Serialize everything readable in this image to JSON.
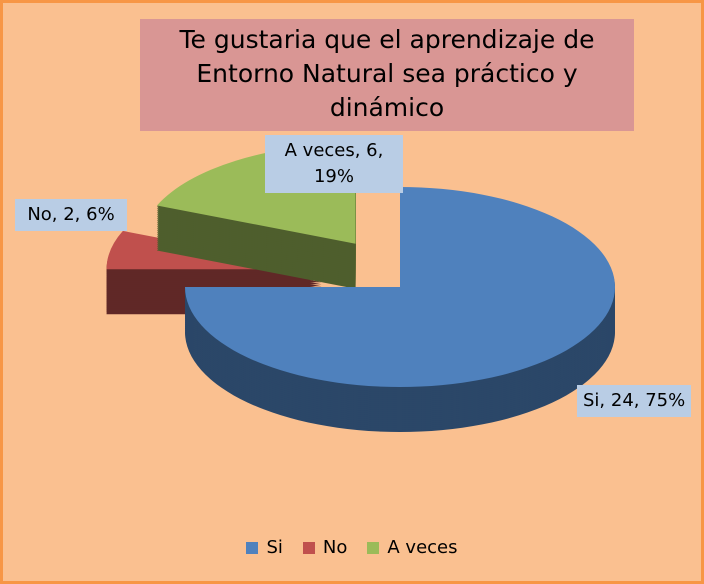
{
  "chart_data": {
    "type": "pie",
    "title": "Te gustaria que el aprendizaje de Entorno Natural sea práctico y dinámico",
    "categories": [
      "Si",
      "No",
      "A veces"
    ],
    "values": [
      24,
      2,
      6
    ],
    "value_labels": [
      "Si, 24, 75%",
      "No, 2, 6%",
      "A veces, 6, 19%"
    ],
    "colors": [
      "#4f81bd",
      "#c0504d",
      "#9bbb59"
    ],
    "legend": "bottom"
  }
}
